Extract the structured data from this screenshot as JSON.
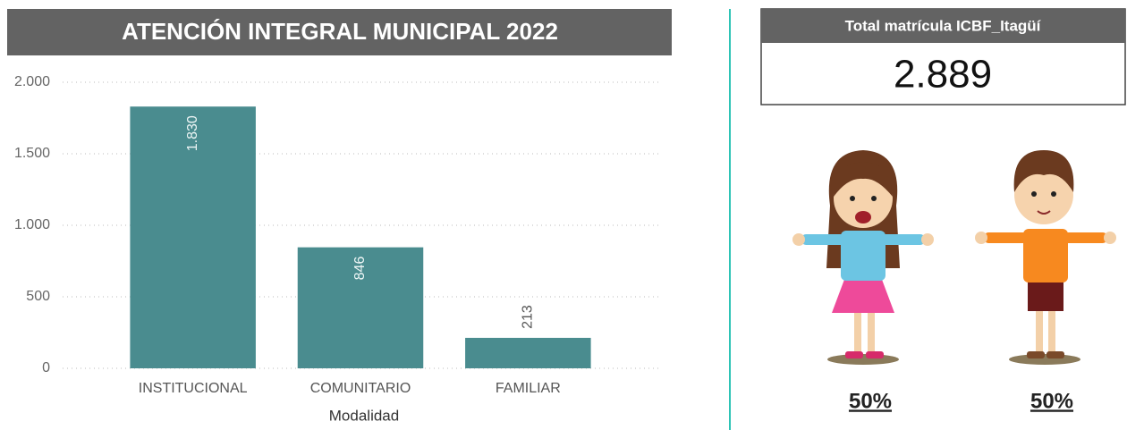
{
  "chart_data": {
    "type": "bar",
    "title": "ATENCIÓN INTEGRAL MUNICIPAL 2022",
    "xlabel": "Modalidad",
    "categories": [
      "INSTITUCIONAL",
      "COMUNITARIO",
      "FAMILIAR"
    ],
    "values": [
      1830,
      846,
      213
    ],
    "value_labels": [
      "1.830",
      "846",
      "213"
    ],
    "color": "#4a8c8f",
    "ylim": [
      0,
      2000
    ],
    "yticks": [
      0,
      500,
      {
        "value": 1000,
        "label": "1.000"
      },
      {
        "value": 1500,
        "label": "1.500"
      },
      {
        "value": 2000,
        "label": "2.000"
      }
    ],
    "grid": true
  },
  "card": {
    "title": "Total matrícula ICBF_Itagüí",
    "value": "2.889"
  },
  "children": [
    {
      "label": "50%"
    },
    {
      "label": "50%"
    }
  ]
}
